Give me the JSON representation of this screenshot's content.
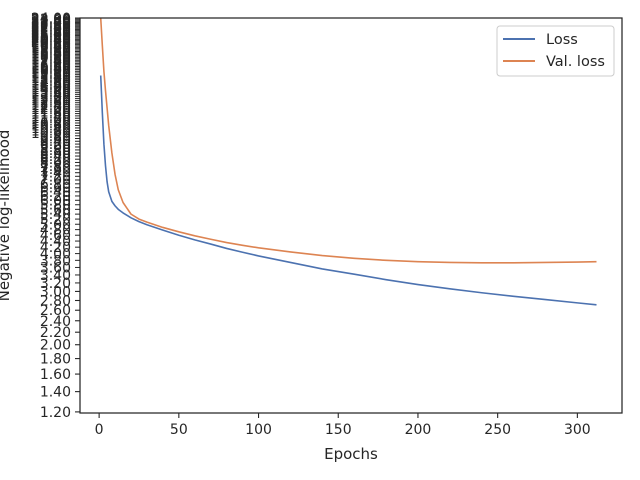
{
  "chart_data": {
    "type": "line",
    "title": "",
    "xlabel": "Epochs",
    "ylabel": "Negative log-likelihood",
    "xlim": [
      -12,
      328
    ],
    "y_scale": "log",
    "ylim": [
      1.19,
      24
    ],
    "x_ticks": [
      0,
      50,
      100,
      150,
      200,
      250,
      300
    ],
    "y_ticks_readable": [
      "1.20",
      "1.40",
      "1.60",
      "1.80",
      "2.00",
      "2.20",
      "2.40",
      "2.60",
      "2.80",
      "3.00"
    ],
    "legend_position": "upper right",
    "series": [
      {
        "name": "Loss",
        "color": "#4c72b0",
        "x": [
          1,
          2,
          3,
          4,
          5,
          6,
          8,
          10,
          12,
          15,
          20,
          25,
          30,
          40,
          50,
          60,
          70,
          80,
          90,
          100,
          120,
          140,
          160,
          180,
          200,
          220,
          240,
          260,
          280,
          300,
          312
        ],
        "y": [
          15.5,
          11.7,
          9.2,
          7.8,
          6.9,
          6.4,
          5.95,
          5.75,
          5.6,
          5.45,
          5.25,
          5.1,
          4.98,
          4.78,
          4.6,
          4.44,
          4.3,
          4.16,
          4.04,
          3.93,
          3.74,
          3.56,
          3.42,
          3.28,
          3.16,
          3.06,
          2.97,
          2.89,
          2.82,
          2.75,
          2.71
        ]
      },
      {
        "name": "Val. loss",
        "color": "#dd8452",
        "x": [
          1,
          2,
          3,
          4,
          5,
          6,
          8,
          10,
          12,
          15,
          20,
          25,
          30,
          40,
          50,
          60,
          70,
          80,
          90,
          100,
          120,
          140,
          160,
          180,
          200,
          220,
          240,
          260,
          280,
          300,
          312
        ],
        "y": [
          24,
          19.5,
          16,
          13.8,
          12.1,
          10.6,
          8.6,
          7.3,
          6.5,
          5.9,
          5.4,
          5.2,
          5.08,
          4.88,
          4.72,
          4.58,
          4.46,
          4.35,
          4.26,
          4.18,
          4.05,
          3.94,
          3.86,
          3.8,
          3.76,
          3.74,
          3.73,
          3.73,
          3.74,
          3.75,
          3.76
        ]
      }
    ]
  }
}
